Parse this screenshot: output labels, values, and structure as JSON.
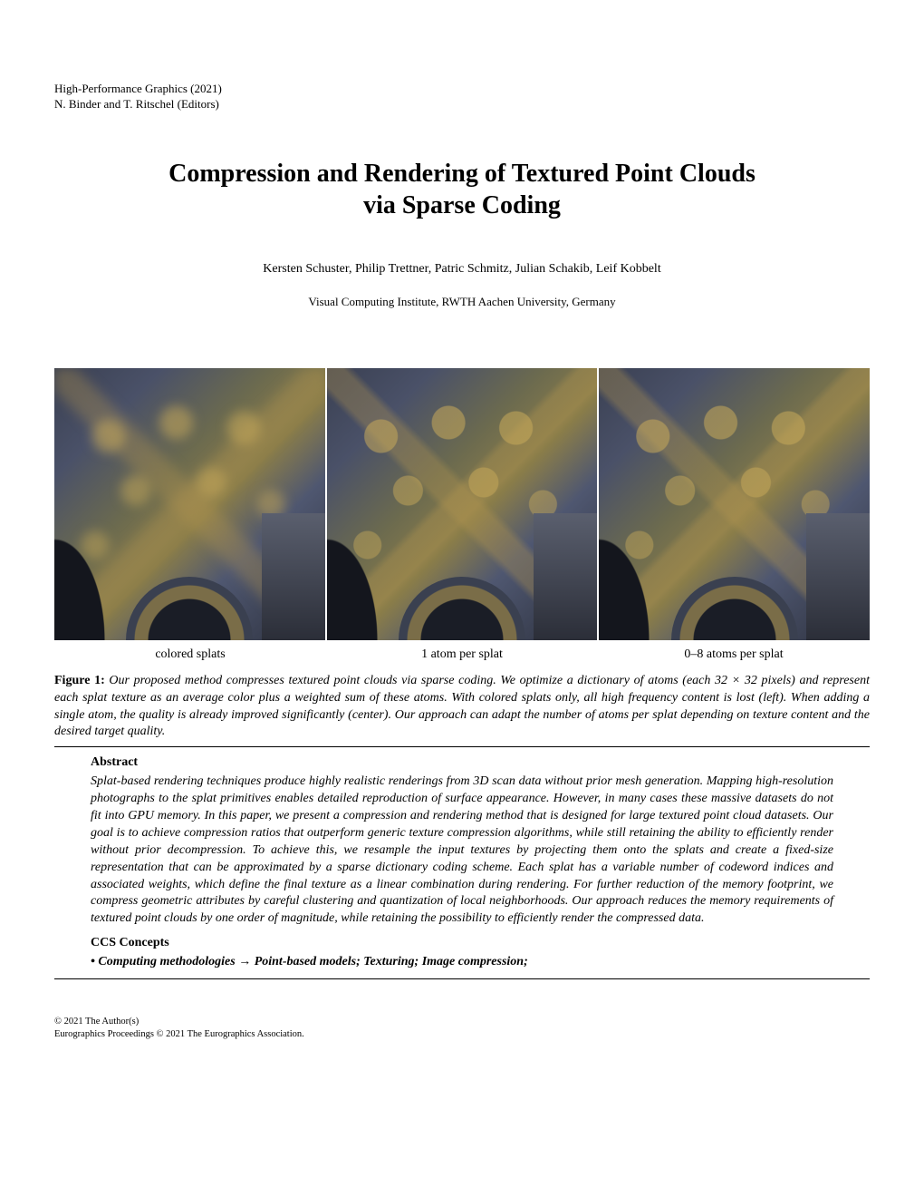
{
  "header": {
    "venue": "High-Performance Graphics (2021)",
    "editors": "N. Binder and T. Ritschel (Editors)"
  },
  "title_line1": "Compression and Rendering of Textured Point Clouds",
  "title_line2": "via Sparse Coding",
  "authors": "Kersten Schuster, Philip Trettner, Patric Schmitz, Julian Schakib, Leif Kobbelt",
  "affiliation": "Visual Computing Institute, RWTH Aachen University, Germany",
  "figure": {
    "labels": [
      "colored splats",
      "1 atom per splat",
      "0–8 atoms per splat"
    ],
    "number": "Figure 1:",
    "caption": "Our proposed method compresses textured point clouds via sparse coding. We optimize a dictionary of atoms (each 32 × 32 pixels) and represent each splat texture as an average color plus a weighted sum of these atoms. With colored splats only, all high frequency content is lost (left). When adding a single atom, the quality is already improved significantly (center). Our approach can adapt the number of atoms per splat depending on texture content and the desired target quality."
  },
  "abstract": {
    "heading": "Abstract",
    "text": "Splat-based rendering techniques produce highly realistic renderings from 3D scan data without prior mesh generation. Mapping high-resolution photographs to the splat primitives enables detailed reproduction of surface appearance. However, in many cases these massive datasets do not fit into GPU memory. In this paper, we present a compression and rendering method that is designed for large textured point cloud datasets. Our goal is to achieve compression ratios that outperform generic texture compression algorithms, while still retaining the ability to efficiently render without prior decompression. To achieve this, we resample the input textures by projecting them onto the splats and create a fixed-size representation that can be approximated by a sparse dictionary coding scheme. Each splat has a variable number of codeword indices and associated weights, which define the final texture as a linear combination during rendering. For further reduction of the memory footprint, we compress geometric attributes by careful clustering and quantization of local neighborhoods. Our approach reduces the memory requirements of textured point clouds by one order of magnitude, while retaining the possibility to efficiently render the compressed data."
  },
  "ccs": {
    "heading": "CCS Concepts",
    "line": "• Computing methodologies → Point-based models; Texturing; Image compression;"
  },
  "copyright": {
    "line1": "© 2021 The Author(s)",
    "line2": "Eurographics Proceedings © 2021 The Eurographics Association."
  },
  "colors": {
    "text": "#000000",
    "background": "#ffffff"
  }
}
